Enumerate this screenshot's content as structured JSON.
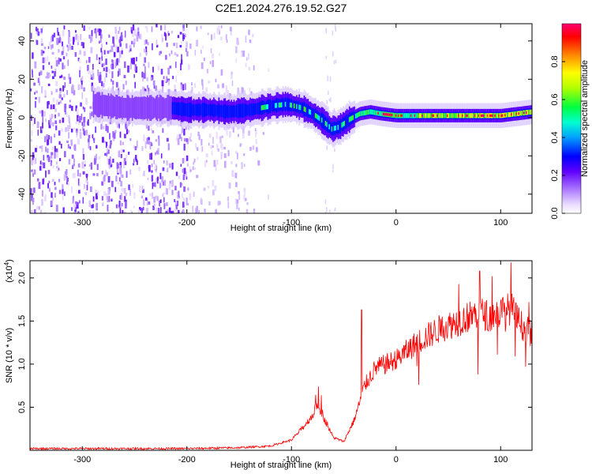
{
  "title": "C2E1.2024.276.19.52.G27",
  "chart_data": [
    {
      "type": "heatmap",
      "xlabel": "Height of straight line (km)",
      "ylabel": "Frequency (Hz)",
      "xlim": [
        -350,
        130
      ],
      "ylim": [
        -50,
        49
      ],
      "x_ticks": [
        -300,
        -200,
        -100,
        0,
        100
      ],
      "y_ticks": [
        -40,
        -20,
        0,
        20,
        40
      ],
      "colorbar": {
        "label": "Normalized spectral amplitude",
        "range": [
          0,
          1
        ],
        "ticks": [
          "0.0",
          "0.2",
          "0.4",
          "0.6",
          "0.8"
        ],
        "colormap": [
          "#ffffff",
          "#c8a0ff",
          "#8000ff",
          "#0000ff",
          "#00c8ff",
          "#00ff60",
          "#c8ff00",
          "#ffff00",
          "#ff8000",
          "#ff0000",
          "#ff0080"
        ]
      },
      "ridge": {
        "x": [
          -290,
          -260,
          -215,
          -200,
          -180,
          -160,
          -140,
          -120,
          -105,
          -90,
          -80,
          -70,
          -62,
          -55,
          -45,
          -35,
          -25,
          -15,
          0,
          20,
          40,
          60,
          80,
          100,
          115,
          130
        ],
        "y": [
          7,
          5,
          5,
          4,
          4,
          3,
          4,
          6,
          7,
          5,
          2,
          -2,
          -6,
          -5,
          -1,
          2,
          3,
          2,
          1,
          1,
          1,
          1,
          1,
          1,
          2,
          3
        ]
      },
      "noise_region_x": [
        -350,
        -130
      ]
    },
    {
      "type": "line",
      "xlabel": "Height of straight line (km)",
      "ylabel": "SNR (10 * v/v)",
      "multiplier_label": "(x10^4)",
      "xlim": [
        -350,
        130
      ],
      "ylim": [
        0,
        2.2
      ],
      "x_ticks": [
        -300,
        -200,
        -100,
        0,
        100
      ],
      "y_ticks": [
        0.5,
        1.0,
        1.5,
        2.0
      ],
      "color": "#ff0000",
      "envelope": {
        "x": [
          -350,
          -200,
          -150,
          -120,
          -100,
          -90,
          -80,
          -75,
          -70,
          -60,
          -50,
          -40,
          -30,
          -20,
          0,
          20,
          40,
          60,
          80,
          90,
          100,
          110,
          120,
          130
        ],
        "y": [
          0.02,
          0.02,
          0.03,
          0.05,
          0.12,
          0.25,
          0.4,
          0.55,
          0.4,
          0.15,
          0.1,
          0.35,
          0.75,
          0.95,
          1.05,
          1.25,
          1.4,
          1.5,
          1.6,
          1.55,
          1.6,
          1.65,
          1.45,
          1.35
        ]
      },
      "peaks": [
        {
          "x": -33,
          "y": 1.63
        },
        {
          "x": 60,
          "y": 1.93
        },
        {
          "x": 80,
          "y": 2.08
        },
        {
          "x": 92,
          "y": 2.02
        },
        {
          "x": 110,
          "y": 2.18
        },
        {
          "x": 127,
          "y": 1.72
        }
      ]
    }
  ]
}
